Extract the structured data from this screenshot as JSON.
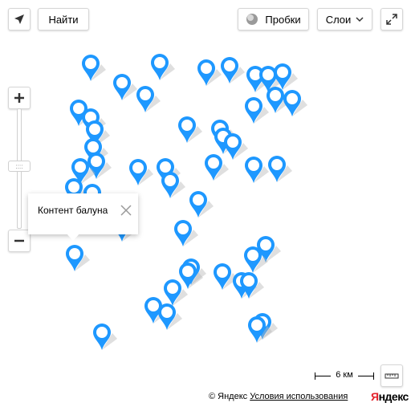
{
  "toolbar": {
    "geolocation_icon": "arrow-icon",
    "search_label": "Найти",
    "traffic_label": "Пробки",
    "layers_label": "Слои",
    "fullscreen_icon": "expand-icon"
  },
  "zoom": {
    "plus_icon": "plus-icon",
    "minus_icon": "minus-icon",
    "handle_label": "::::"
  },
  "balloon": {
    "text": "Контент балуна"
  },
  "scale": {
    "label": "6 км"
  },
  "footer": {
    "copyright": "© Яндекс",
    "terms": "Условия использования",
    "logo_first": "Я",
    "logo_rest": "ндекс"
  },
  "colors": {
    "marker": "#1e98ff",
    "marker_shadow": "#b8b8b8"
  }
}
